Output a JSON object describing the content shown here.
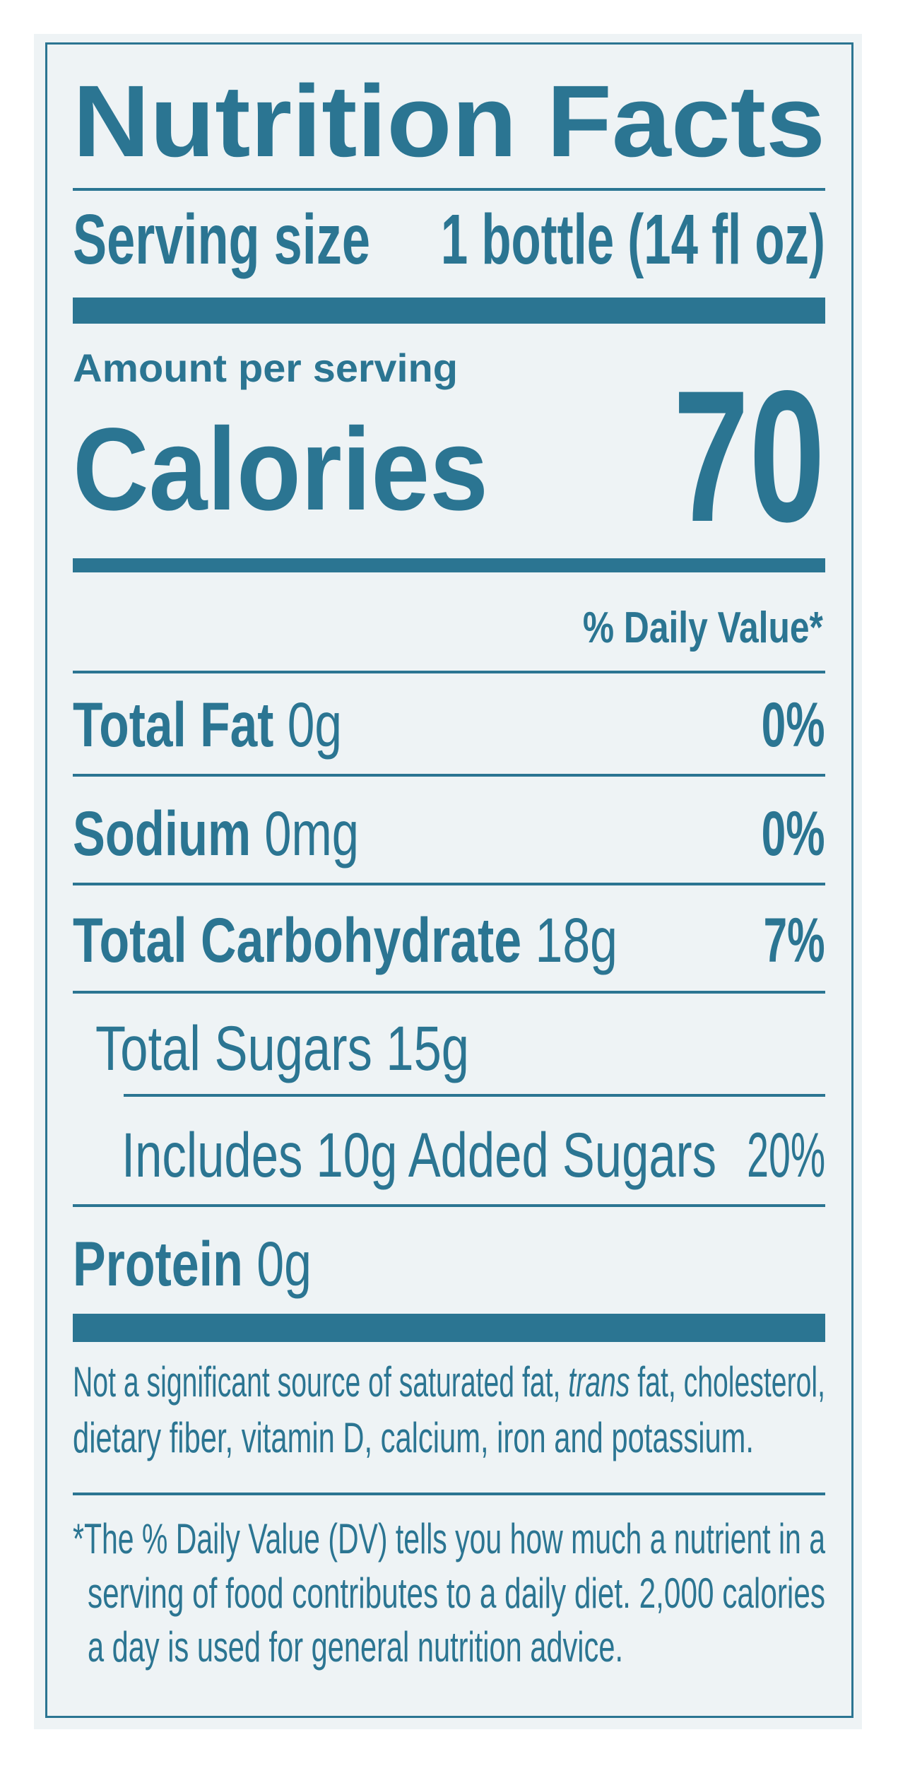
{
  "label": {
    "title": "Nutrition Facts",
    "serving_size_label": "Serving size",
    "serving_size_value": "1 bottle (14 fl oz)",
    "amount_per_serving": "Amount per serving",
    "calories_label": "Calories",
    "calories_value": "70",
    "daily_value_header": "% Daily Value*",
    "nutrients": [
      {
        "name": "Total Fat",
        "amount": "0g",
        "dv": "0%"
      },
      {
        "name": "Sodium",
        "amount": "0mg",
        "dv": "0%"
      },
      {
        "name": "Total Carbohydrate",
        "amount": "18g",
        "dv": "7%"
      },
      {
        "name": "Total Sugars 15g",
        "amount": "",
        "dv": ""
      },
      {
        "name": "Includes 10g Added Sugars",
        "amount": "",
        "dv": "20%"
      },
      {
        "name": "Protein",
        "amount": "0g",
        "dv": ""
      }
    ],
    "not_significant_1a": "Not a significant source of saturated fat, ",
    "not_significant_1b": "trans",
    "not_significant_1c": " fat, cholesterol,",
    "not_significant_2": "dietary fiber, vitamin D, calcium, iron and potassium.",
    "footnote_1": "*The % Daily Value (DV) tells you how much a nutrient in a",
    "footnote_2": "serving of food contributes to a daily diet. 2,000 calories",
    "footnote_3": "a day is used for general nutrition advice."
  },
  "colors": {
    "ink": "#2b7592",
    "background": "#eef3f5"
  }
}
